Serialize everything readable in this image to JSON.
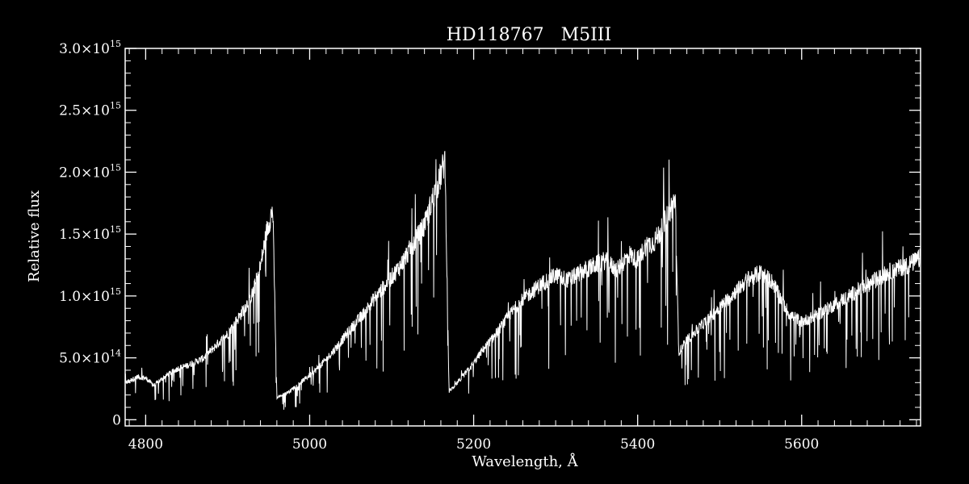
{
  "chart_data": {
    "type": "line",
    "title": "HD118767   M5III",
    "xlabel": "Wavelength, Å",
    "ylabel": "Relative flux",
    "xlim": [
      4775,
      5745
    ],
    "ylim": [
      -50000000000000.0,
      3000000000000000.0
    ],
    "xticks": [
      {
        "value": 4800,
        "label": "4800"
      },
      {
        "value": 5000,
        "label": "5000"
      },
      {
        "value": 5200,
        "label": "5200"
      },
      {
        "value": 5400,
        "label": "5400"
      },
      {
        "value": 5600,
        "label": "5600"
      }
    ],
    "yticks": [
      {
        "value": 0,
        "mant": "0",
        "exp": ""
      },
      {
        "value": 500000000000000.0,
        "mant": "5.0×10",
        "exp": "14"
      },
      {
        "value": 1000000000000000.0,
        "mant": "1.0×10",
        "exp": "15"
      },
      {
        "value": 1500000000000000.0,
        "mant": "1.5×10",
        "exp": "15"
      },
      {
        "value": 2000000000000000.0,
        "mant": "2.0×10",
        "exp": "15"
      },
      {
        "value": 2500000000000000.0,
        "mant": "2.5×10",
        "exp": "15"
      },
      {
        "value": 3000000000000000.0,
        "mant": "3.0×10",
        "exp": "15"
      }
    ],
    "grid": false,
    "color": "#ffffff",
    "background": "#000000",
    "series": [
      {
        "x": [
          4775,
          4790,
          4800,
          4810,
          4825,
          4840,
          4850,
          4870,
          4885,
          4900,
          4915,
          4930,
          4940,
          4948,
          4955,
          4960,
          4975,
          4990,
          5005,
          5020,
          5035,
          5050,
          5065,
          5080,
          5095,
          5110,
          5125,
          5140,
          5150,
          5158,
          5165,
          5170,
          5180,
          5190,
          5200,
          5210,
          5225,
          5240,
          5255,
          5270,
          5285,
          5300,
          5315,
          5330,
          5345,
          5360,
          5375,
          5390,
          5400,
          5410,
          5420,
          5430,
          5440,
          5446,
          5450,
          5460,
          5475,
          5490,
          5505,
          5520,
          5535,
          5550,
          5565,
          5575,
          5585,
          5600,
          5615,
          5630,
          5645,
          5660,
          5675,
          5690,
          5705,
          5720,
          5735,
          5745
        ],
        "y": [
          300000000000000.0,
          350000000000000.0,
          340000000000000.0,
          280000000000000.0,
          360000000000000.0,
          420000000000000.0,
          440000000000000.0,
          500000000000000.0,
          600000000000000.0,
          700000000000000.0,
          850000000000000.0,
          1020000000000000.0,
          1250000000000000.0,
          1550000000000000.0,
          1720000000000000.0,
          180000000000000.0,
          230000000000000.0,
          310000000000000.0,
          390000000000000.0,
          490000000000000.0,
          610000000000000.0,
          740000000000000.0,
          860000000000000.0,
          1000000000000000.0,
          1120000000000000.0,
          1250000000000000.0,
          1420000000000000.0,
          1580000000000000.0,
          1800000000000000.0,
          1950000000000000.0,
          2120000000000000.0,
          230000000000000.0,
          300000000000000.0,
          380000000000000.0,
          460000000000000.0,
          560000000000000.0,
          680000000000000.0,
          820000000000000.0,
          950000000000000.0,
          1040000000000000.0,
          1120000000000000.0,
          1180000000000000.0,
          1140000000000000.0,
          1200000000000000.0,
          1250000000000000.0,
          1300000000000000.0,
          1220000000000000.0,
          1350000000000000.0,
          1300000000000000.0,
          1420000000000000.0,
          1450000000000000.0,
          1560000000000000.0,
          1720000000000000.0,
          1800000000000000.0,
          550000000000000.0,
          650000000000000.0,
          750000000000000.0,
          850000000000000.0,
          950000000000000.0,
          1050000000000000.0,
          1150000000000000.0,
          1200000000000000.0,
          1120000000000000.0,
          980000000000000.0,
          860000000000000.0,
          800000000000000.0,
          840000000000000.0,
          900000000000000.0,
          960000000000000.0,
          1020000000000000.0,
          1080000000000000.0,
          1140000000000000.0,
          1200000000000000.0,
          1240000000000000.0,
          1280000000000000.0,
          1320000000000000.0
        ]
      }
    ]
  }
}
